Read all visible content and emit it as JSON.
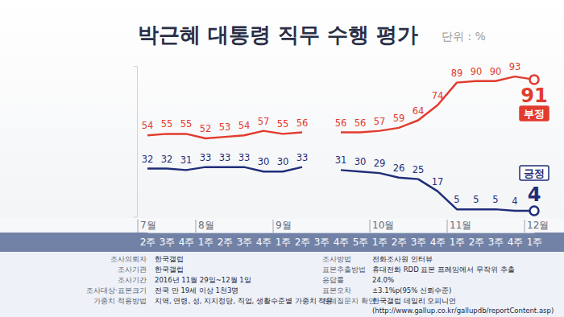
{
  "chart_data": {
    "type": "line",
    "title": "박근혜 대통령 직무 수행 평가",
    "subtitle": "단위 : %",
    "categories": [
      "2주",
      "3주",
      "4주",
      "1주",
      "2주",
      "3주",
      "4주",
      "1주",
      "2주",
      "3주",
      "4주",
      "5주",
      "1주",
      "2주",
      "3주",
      "4주",
      "1주",
      "2주",
      "3주",
      "4주",
      "1주"
    ],
    "month_labels": [
      "7월",
      "8월",
      "9월",
      "10월",
      "11월",
      "12월"
    ],
    "series": [
      {
        "name": "부정",
        "color": "#e23b2e",
        "values": [
          54,
          55,
          55,
          52,
          53,
          54,
          57,
          55,
          56,
          null,
          56,
          56,
          57,
          59,
          64,
          74,
          89,
          90,
          90,
          93,
          91
        ]
      },
      {
        "name": "긍정",
        "color": "#1f2d78",
        "values": [
          32,
          32,
          31,
          33,
          33,
          33,
          30,
          30,
          33,
          null,
          31,
          30,
          29,
          26,
          25,
          17,
          5,
          5,
          5,
          4,
          4
        ]
      }
    ],
    "ylim": [
      0,
      100
    ],
    "yticks": [],
    "tick_labels": "x",
    "data_labels": true,
    "grid": false
  },
  "footer": {
    "left": [
      {
        "key": "조사의뢰자",
        "value": "한국갤럽"
      },
      {
        "key": "조사기관",
        "value": "한국갤럽"
      },
      {
        "key": "조사기간",
        "value": "2016년 11월 29일~12월 1일"
      },
      {
        "key": "조사대상·표본크기",
        "value": "전국 만 19세 이상 1천3명"
      },
      {
        "key": "가중치 적용방법",
        "value": "지역, 연령, 성, 지지정당, 직업, 생활수준별 가중치 적용"
      }
    ],
    "right": [
      {
        "key": "조사방법",
        "value": "전화조사원 인터뷰"
      },
      {
        "key": "표본추출방법",
        "value": "휴대전화 RDD 표본 프레임에서 무작위 추출"
      },
      {
        "key": "응답률",
        "value": "24.0%"
      },
      {
        "key": "표본오차",
        "value": "±3.1%p(95% 신뢰수준)"
      },
      {
        "key": "전체질문지 확인",
        "value": [
          "한국갤럽 데일리 오피니언",
          "(http://www.gallup.co.kr/gallupdb/reportContent.asp)"
        ]
      }
    ]
  }
}
